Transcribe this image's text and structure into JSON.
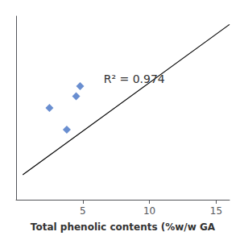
{
  "chart_data": {
    "type": "scatter",
    "x_label": "Total phenolic contents (%w/w GA",
    "annotation": "R² = 0.974",
    "xlim": [
      0,
      16
    ],
    "xticks": [
      5,
      10,
      15
    ],
    "ylim": [
      0,
      1.1
    ],
    "yticks": [],
    "tick_labels": "x",
    "grid": false,
    "series": [
      {
        "type": "line",
        "color": "black",
        "line_style": "solid",
        "x": [
          0.5,
          16
        ],
        "values": [
          0.15,
          1.05
        ]
      },
      {
        "type": "scatter",
        "color": "#4472C4",
        "marker": "diamond",
        "x": [
          2.5,
          3.8,
          4.5,
          4.8
        ],
        "values": [
          0.55,
          0.42,
          0.62,
          0.68
        ]
      }
    ]
  }
}
